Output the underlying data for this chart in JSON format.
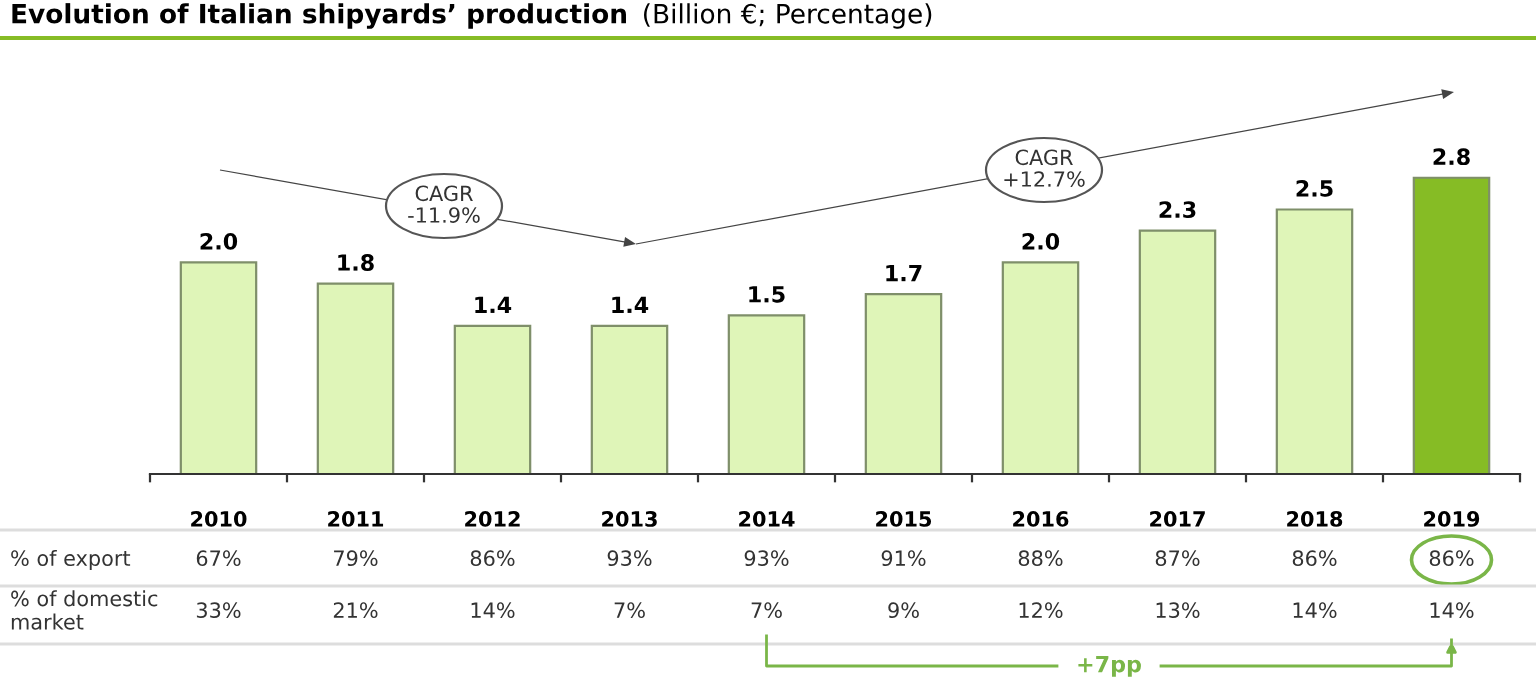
{
  "chart_data": {
    "type": "bar",
    "title": "Evolution of Italian shipyards’ production",
    "subtitle": "(Billion €; Percentage)",
    "categories": [
      "2010",
      "2011",
      "2012",
      "2013",
      "2014",
      "2015",
      "2016",
      "2017",
      "2018",
      "2019"
    ],
    "values": [
      2.0,
      1.8,
      1.4,
      1.4,
      1.5,
      1.7,
      2.0,
      2.3,
      2.5,
      2.8
    ],
    "colors": [
      "#dff5b8",
      "#dff5b8",
      "#dff5b8",
      "#dff5b8",
      "#dff5b8",
      "#dff5b8",
      "#dff5b8",
      "#dff5b8",
      "#dff5b8",
      "#86bc25"
    ],
    "value_labels": [
      "2.0",
      "1.8",
      "1.4",
      "1.4",
      "1.5",
      "1.7",
      "2.0",
      "2.3",
      "2.5",
      "2.8"
    ],
    "annotations": [
      "% of export",
      "67%",
      "79%",
      "86%",
      "93%",
      "93%",
      "91%",
      "88%",
      "87%",
      "86%",
      "86%",
      "% of domestic\nmarket",
      "33%",
      "21%",
      "14%",
      "7%",
      "7%",
      "9%",
      "12%",
      "13%",
      "14%",
      "14%",
      "CAGR\n-11.9%",
      "CAGR\n+12.7%",
      "+7pp"
    ]
  }
}
